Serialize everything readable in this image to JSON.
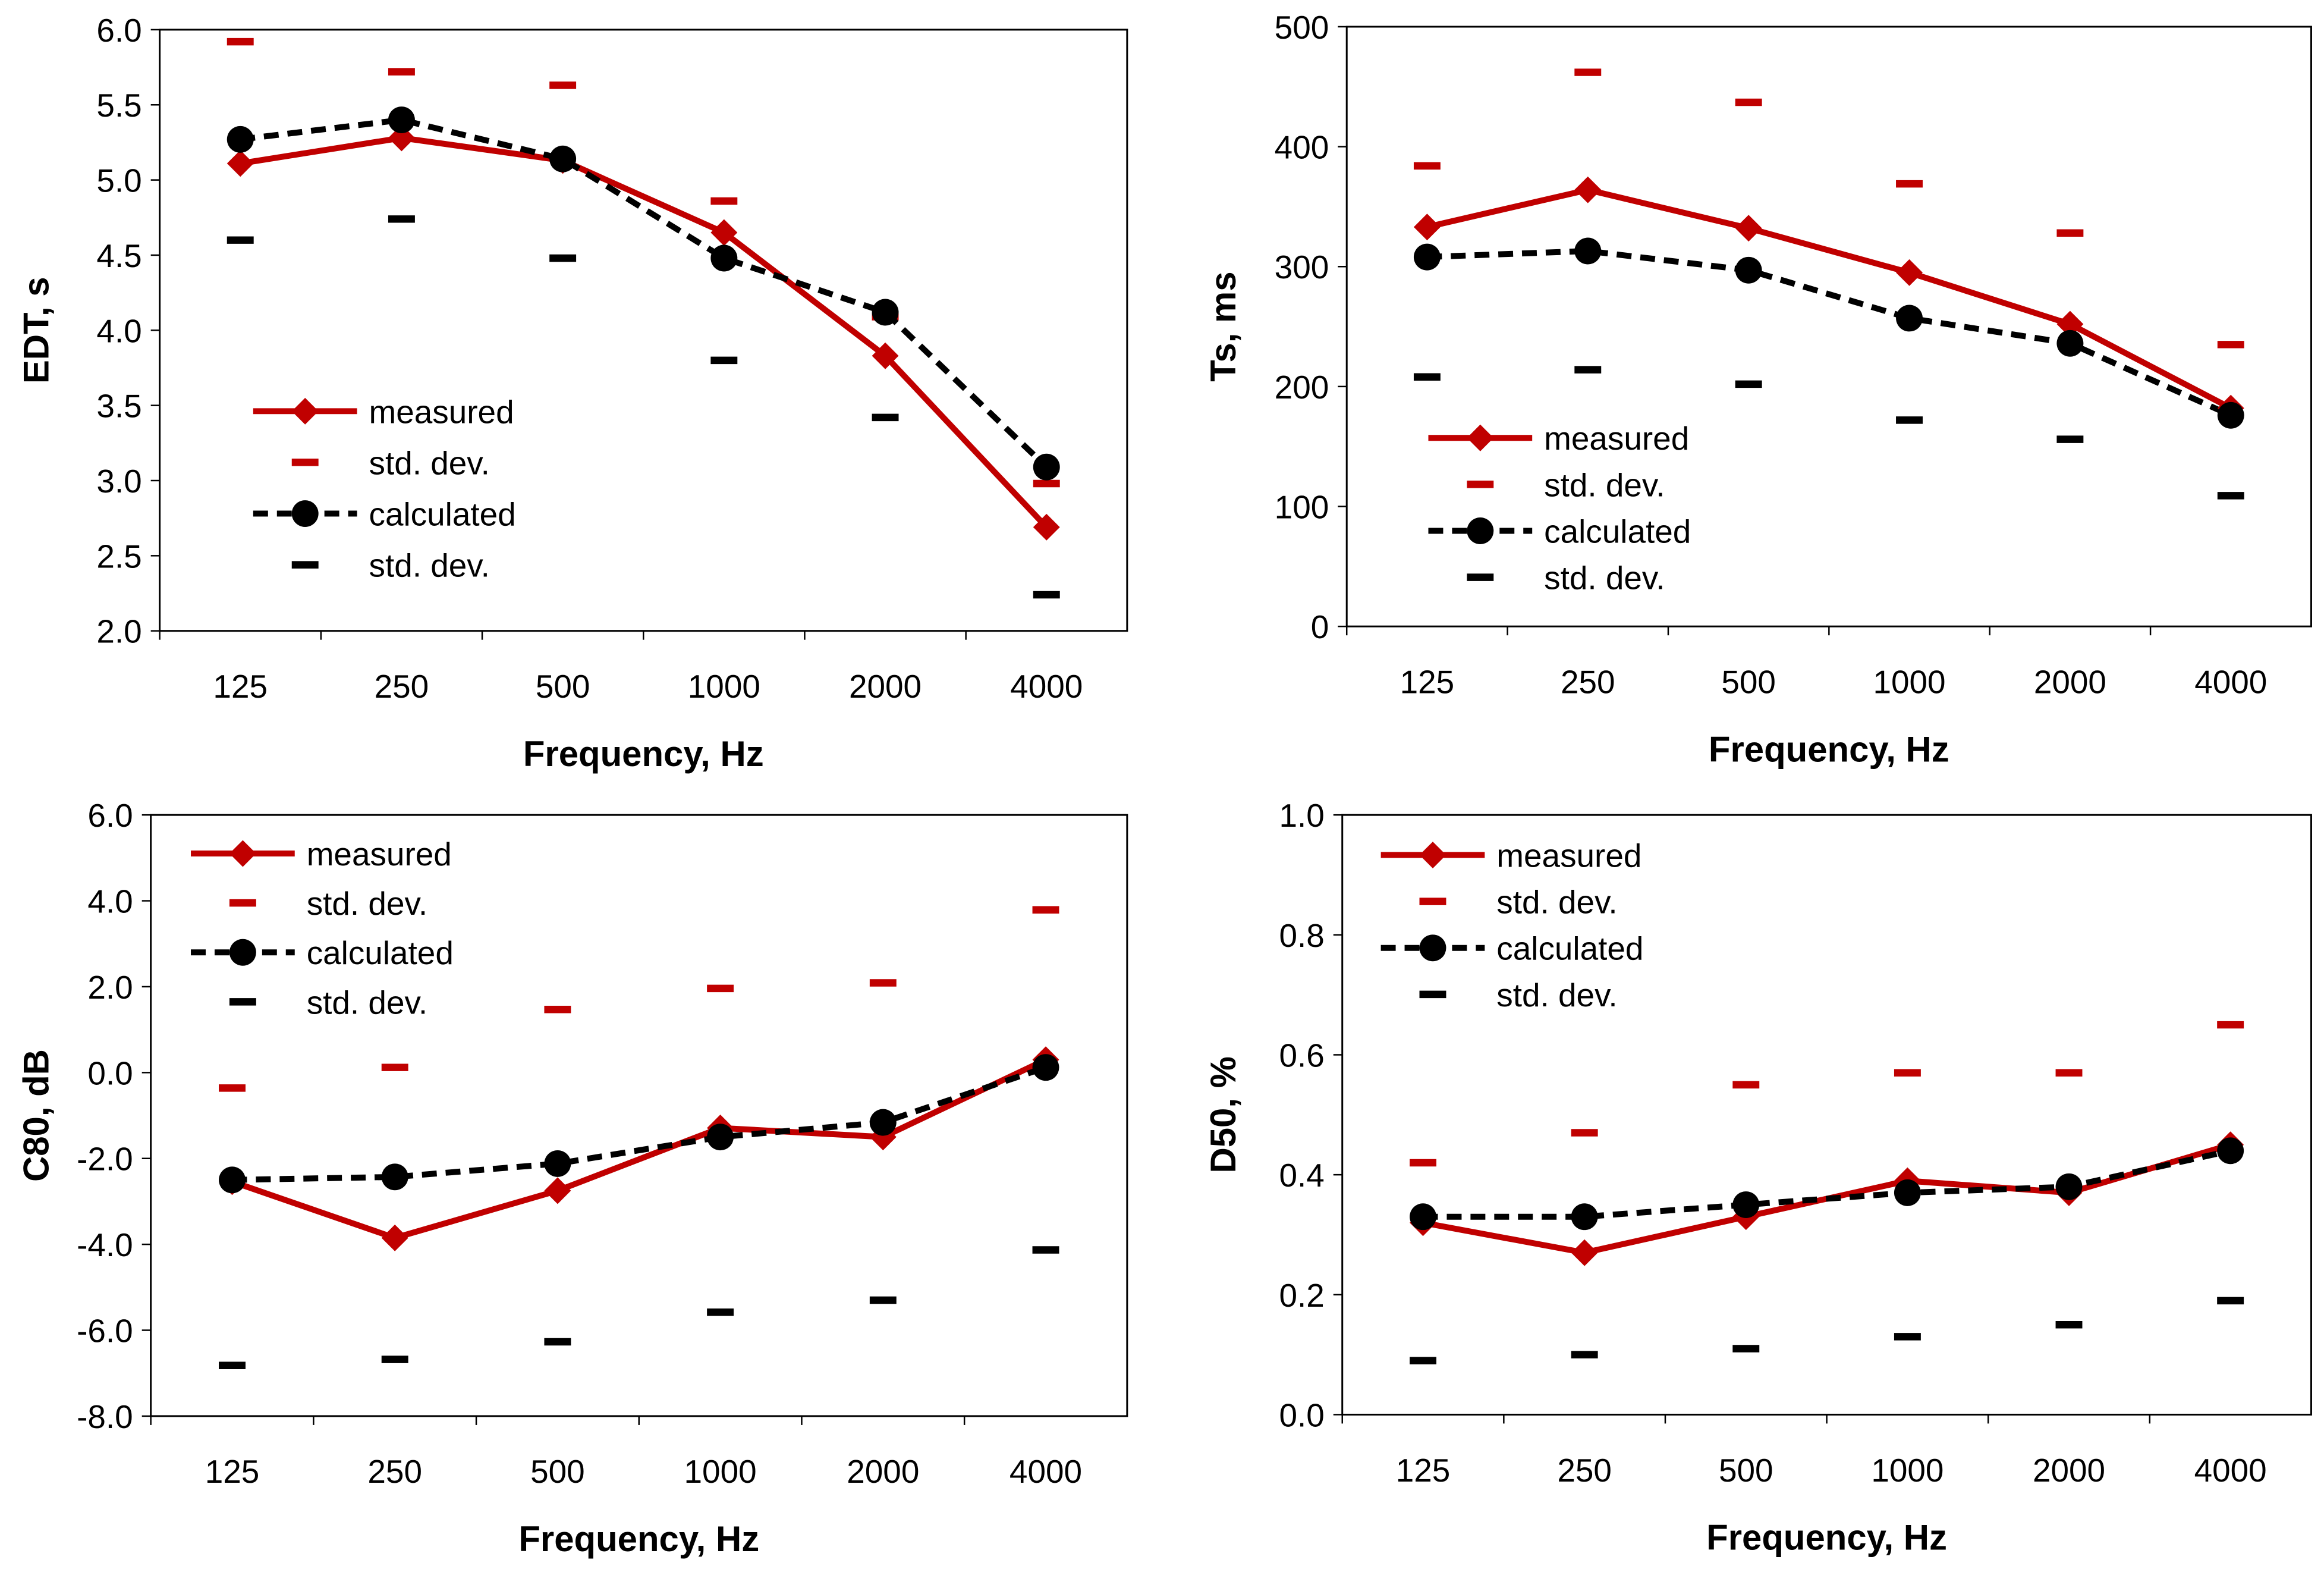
{
  "colors": {
    "measured": "#c00000",
    "calculated": "#000000"
  },
  "chart_data": [
    {
      "type": "line",
      "id": "edt",
      "xlabel": "Frequency, Hz",
      "ylabel": "EDT, s",
      "ylim": [
        2.0,
        6.0
      ],
      "ystep": 0.5,
      "ydec": 1,
      "categories": [
        "125",
        "250",
        "500",
        "1000",
        "2000",
        "4000"
      ],
      "series": [
        {
          "name": "measured",
          "values": [
            5.11,
            5.28,
            5.13,
            4.65,
            3.83,
            2.69
          ]
        },
        {
          "name": "std. dev.",
          "values": [
            5.92,
            5.72,
            5.63,
            4.86,
            4.09,
            2.98
          ]
        },
        {
          "name": "calculated",
          "values": [
            5.27,
            5.4,
            5.14,
            4.48,
            4.12,
            3.09
          ]
        },
        {
          "name": "std. dev.",
          "values": [
            4.6,
            4.74,
            4.48,
            3.8,
            3.42,
            2.24
          ]
        }
      ]
    },
    {
      "type": "line",
      "id": "ts",
      "xlabel": "Frequency, Hz",
      "ylabel": "Ts, ms",
      "ylim": [
        0,
        500
      ],
      "ystep": 100,
      "ydec": 0,
      "categories": [
        "125",
        "250",
        "500",
        "1000",
        "2000",
        "4000"
      ],
      "series": [
        {
          "name": "measured",
          "values": [
            333,
            364,
            332,
            295,
            252,
            182
          ]
        },
        {
          "name": "std. dev.",
          "values": [
            384,
            462,
            437,
            369,
            328,
            235
          ]
        },
        {
          "name": "calculated",
          "values": [
            308,
            313,
            297,
            257,
            236,
            176
          ]
        },
        {
          "name": "std. dev.",
          "values": [
            208,
            214,
            202,
            172,
            156,
            109
          ]
        }
      ]
    },
    {
      "type": "line",
      "id": "c80",
      "xlabel": "Frequency, Hz",
      "ylabel": "C80, dB",
      "ylim": [
        -8.0,
        6.0
      ],
      "ystep": 2,
      "ydec": 1,
      "categories": [
        "125",
        "250",
        "500",
        "1000",
        "2000",
        "4000"
      ],
      "series": [
        {
          "name": "measured",
          "values": [
            -2.54,
            -3.85,
            -2.75,
            -1.29,
            -1.5,
            0.3
          ]
        },
        {
          "name": "std. dev.",
          "values": [
            -0.36,
            0.12,
            1.47,
            1.96,
            2.09,
            3.79
          ]
        },
        {
          "name": "calculated",
          "values": [
            -2.5,
            -2.43,
            -2.12,
            -1.5,
            -1.16,
            0.12
          ]
        },
        {
          "name": "std. dev.",
          "values": [
            -6.82,
            -6.68,
            -6.27,
            -5.58,
            -5.3,
            -4.13
          ]
        }
      ]
    },
    {
      "type": "line",
      "id": "d50",
      "xlabel": "Frequency, Hz",
      "ylabel": "D50, %",
      "ylim": [
        0.0,
        1.0
      ],
      "ystep": 0.2,
      "ydec": 1,
      "categories": [
        "125",
        "250",
        "500",
        "1000",
        "2000",
        "4000"
      ],
      "series": [
        {
          "name": "measured",
          "values": [
            0.32,
            0.27,
            0.33,
            0.39,
            0.37,
            0.45
          ]
        },
        {
          "name": "std. dev.",
          "values": [
            0.42,
            0.47,
            0.55,
            0.57,
            0.57,
            0.65
          ]
        },
        {
          "name": "calculated",
          "values": [
            0.33,
            0.33,
            0.35,
            0.37,
            0.38,
            0.44
          ]
        },
        {
          "name": "std. dev.",
          "values": [
            0.09,
            0.1,
            0.11,
            0.13,
            0.15,
            0.19
          ]
        }
      ]
    }
  ]
}
